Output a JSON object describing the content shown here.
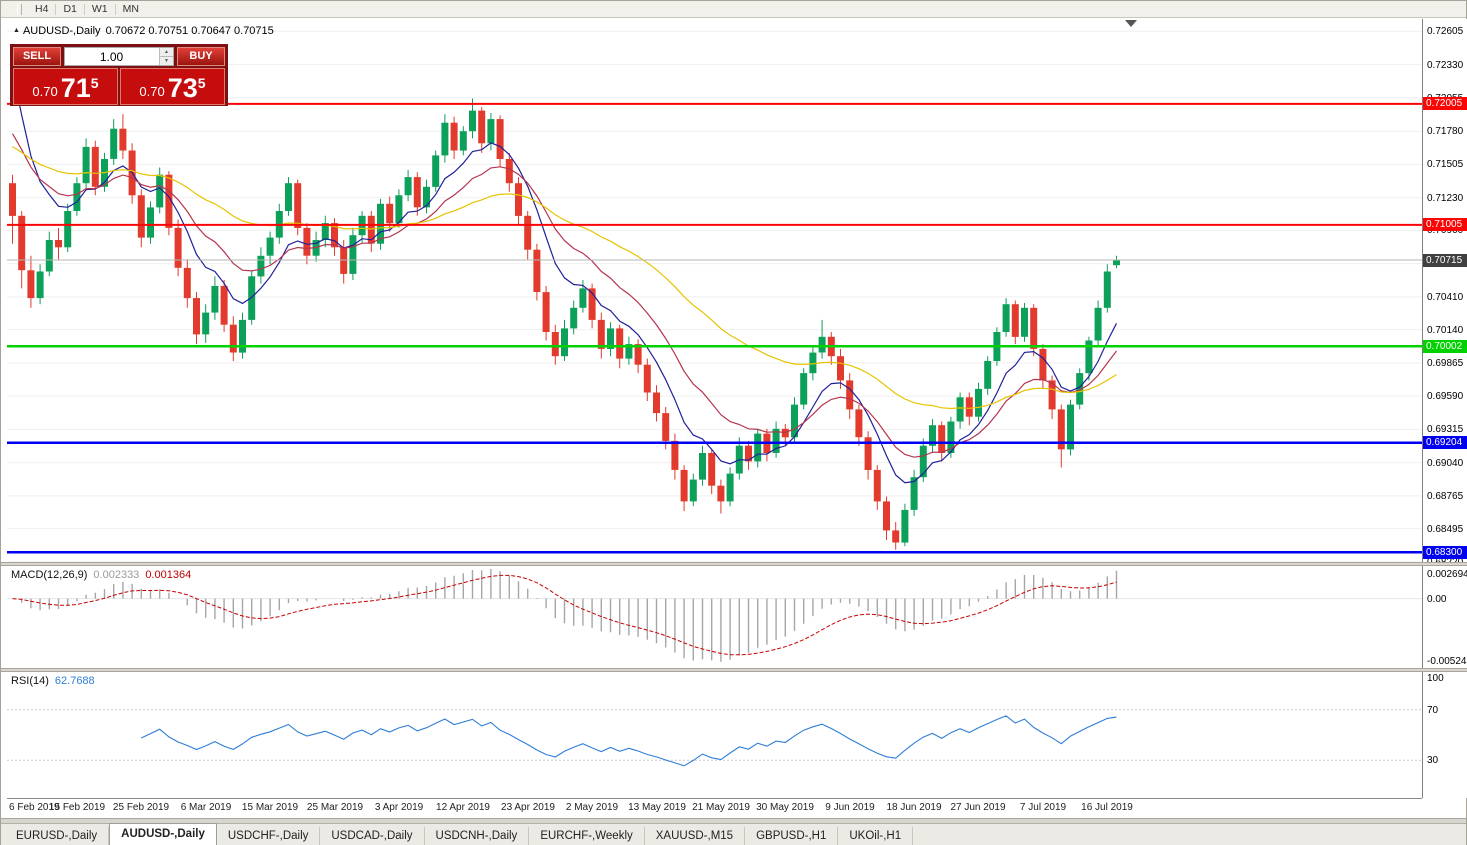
{
  "window": {
    "timeframes": [
      "H4",
      "D1",
      "W1",
      "MN"
    ]
  },
  "chart": {
    "title": "AUDUSD-,Daily",
    "ohlc": "0.70672 0.70751 0.70647 0.70715"
  },
  "icons": {
    "one_click_toggle": "▲",
    "spin_up": "▲",
    "spin_down": "▼"
  },
  "trade_panel": {
    "sell_label": "SELL",
    "buy_label": "BUY",
    "volume": "1.00",
    "sell_price": "0.70715",
    "buy_price": "0.70735",
    "sell": {
      "prefix": "0.70",
      "big": "71",
      "sup": "5"
    },
    "buy": {
      "prefix": "0.70",
      "big": "73",
      "sup": "5"
    }
  },
  "chart_data": {
    "type": "candlestick",
    "symbol": "AUDUSD",
    "timeframe": "Daily",
    "price_axis": {
      "max": 0.72707,
      "min": 0.68219,
      "labels": [
        "0.72605",
        "0.72330",
        "0.72055",
        "0.71780",
        "0.71505",
        "0.71230",
        "0.70960",
        "0.70685",
        "0.70410",
        "0.70140",
        "0.69865",
        "0.69590",
        "0.69315",
        "0.69040",
        "0.68765",
        "0.68495",
        "0.68220"
      ]
    },
    "x_axis": {
      "labels": [
        "6 Feb 2019",
        "15 Feb 2019",
        "25 Feb 2019",
        "6 Mar 2019",
        "15 Mar 2019",
        "25 Mar 2019",
        "3 Apr 2019",
        "12 Apr 2019",
        "23 Apr 2019",
        "2 May 2019",
        "13 May 2019",
        "21 May 2019",
        "30 May 2019",
        "9 Jun 2019",
        "18 Jun 2019",
        "27 Jun 2019",
        "7 Jul 2019",
        "16 Jul 2019"
      ],
      "indices": [
        0,
        7,
        14,
        21,
        28,
        35,
        42,
        49,
        56,
        63,
        70,
        77,
        84,
        91,
        98,
        105,
        112,
        119
      ]
    },
    "candles": [
      [
        0.7135,
        0.7142,
        0.7085,
        0.7108
      ],
      [
        0.7108,
        0.7112,
        0.7048,
        0.7063
      ],
      [
        0.7063,
        0.7075,
        0.7032,
        0.704
      ],
      [
        0.704,
        0.7068,
        0.7035,
        0.7062
      ],
      [
        0.7062,
        0.7095,
        0.7058,
        0.7088
      ],
      [
        0.7088,
        0.7098,
        0.7072,
        0.7082
      ],
      [
        0.7082,
        0.7118,
        0.7078,
        0.7112
      ],
      [
        0.7112,
        0.714,
        0.7108,
        0.7135
      ],
      [
        0.7135,
        0.7172,
        0.713,
        0.7165
      ],
      [
        0.7165,
        0.717,
        0.7125,
        0.7132
      ],
      [
        0.7132,
        0.716,
        0.7128,
        0.7155
      ],
      [
        0.7155,
        0.7188,
        0.715,
        0.718
      ],
      [
        0.718,
        0.7192,
        0.7155,
        0.7162
      ],
      [
        0.7162,
        0.7168,
        0.7118,
        0.7125
      ],
      [
        0.7125,
        0.713,
        0.7082,
        0.709
      ],
      [
        0.709,
        0.712,
        0.7085,
        0.7115
      ],
      [
        0.7115,
        0.7148,
        0.711,
        0.7142
      ],
      [
        0.7142,
        0.7145,
        0.7092,
        0.7098
      ],
      [
        0.7098,
        0.7105,
        0.7058,
        0.7065
      ],
      [
        0.7065,
        0.7072,
        0.7032,
        0.704
      ],
      [
        0.704,
        0.7045,
        0.7002,
        0.701
      ],
      [
        0.701,
        0.7035,
        0.7003,
        0.7028
      ],
      [
        0.7028,
        0.7058,
        0.7022,
        0.705
      ],
      [
        0.705,
        0.7055,
        0.7012,
        0.7018
      ],
      [
        0.7018,
        0.7025,
        0.6988,
        0.6995
      ],
      [
        0.6995,
        0.7028,
        0.699,
        0.7022
      ],
      [
        0.7022,
        0.7062,
        0.7018,
        0.7058
      ],
      [
        0.7058,
        0.7082,
        0.7052,
        0.7075
      ],
      [
        0.7075,
        0.7095,
        0.7068,
        0.709
      ],
      [
        0.709,
        0.7118,
        0.7085,
        0.7112
      ],
      [
        0.7112,
        0.714,
        0.7108,
        0.7135
      ],
      [
        0.7135,
        0.7138,
        0.7092,
        0.7098
      ],
      [
        0.7098,
        0.7102,
        0.7068,
        0.7075
      ],
      [
        0.7075,
        0.7095,
        0.707,
        0.7088
      ],
      [
        0.7088,
        0.7108,
        0.7082,
        0.7102
      ],
      [
        0.7102,
        0.7106,
        0.7075,
        0.7082
      ],
      [
        0.7082,
        0.7088,
        0.7052,
        0.706
      ],
      [
        0.706,
        0.7098,
        0.7055,
        0.7092
      ],
      [
        0.7092,
        0.7112,
        0.7086,
        0.7108
      ],
      [
        0.7108,
        0.7112,
        0.7078,
        0.7085
      ],
      [
        0.7085,
        0.7122,
        0.708,
        0.7118
      ],
      [
        0.7118,
        0.7124,
        0.7095,
        0.7102
      ],
      [
        0.7102,
        0.713,
        0.7098,
        0.7125
      ],
      [
        0.7125,
        0.7146,
        0.712,
        0.714
      ],
      [
        0.714,
        0.7144,
        0.7108,
        0.7115
      ],
      [
        0.7115,
        0.7138,
        0.711,
        0.7132
      ],
      [
        0.7132,
        0.7162,
        0.7128,
        0.7158
      ],
      [
        0.7158,
        0.7192,
        0.7152,
        0.7185
      ],
      [
        0.7185,
        0.719,
        0.7155,
        0.7162
      ],
      [
        0.7162,
        0.7182,
        0.7158,
        0.7178
      ],
      [
        0.7178,
        0.7205,
        0.7172,
        0.7195
      ],
      [
        0.7195,
        0.7198,
        0.716,
        0.7168
      ],
      [
        0.7168,
        0.7193,
        0.7162,
        0.7188
      ],
      [
        0.7188,
        0.7191,
        0.7148,
        0.7155
      ],
      [
        0.7155,
        0.716,
        0.7128,
        0.7135
      ],
      [
        0.7135,
        0.714,
        0.71,
        0.7108
      ],
      [
        0.7108,
        0.7112,
        0.7072,
        0.708
      ],
      [
        0.708,
        0.7085,
        0.7038,
        0.7045
      ],
      [
        0.7045,
        0.705,
        0.7005,
        0.7012
      ],
      [
        0.7012,
        0.7018,
        0.6985,
        0.6992
      ],
      [
        0.6992,
        0.7022,
        0.6988,
        0.7015
      ],
      [
        0.7015,
        0.7038,
        0.701,
        0.7032
      ],
      [
        0.7032,
        0.7055,
        0.7028,
        0.7048
      ],
      [
        0.7048,
        0.7052,
        0.7015,
        0.7022
      ],
      [
        0.7022,
        0.7028,
        0.699,
        0.6998
      ],
      [
        0.6998,
        0.702,
        0.6992,
        0.7015
      ],
      [
        0.7015,
        0.7018,
        0.6982,
        0.699
      ],
      [
        0.699,
        0.7008,
        0.6985,
        0.7002
      ],
      [
        0.7002,
        0.7006,
        0.6978,
        0.6985
      ],
      [
        0.6985,
        0.699,
        0.6955,
        0.6962
      ],
      [
        0.6962,
        0.6968,
        0.6938,
        0.6945
      ],
      [
        0.6945,
        0.695,
        0.6915,
        0.6922
      ],
      [
        0.6922,
        0.6928,
        0.689,
        0.6898
      ],
      [
        0.6898,
        0.6902,
        0.6864,
        0.6872
      ],
      [
        0.6872,
        0.6895,
        0.6868,
        0.689
      ],
      [
        0.689,
        0.6918,
        0.6885,
        0.6912
      ],
      [
        0.6912,
        0.6915,
        0.6878,
        0.6885
      ],
      [
        0.6885,
        0.689,
        0.6862,
        0.6872
      ],
      [
        0.6872,
        0.69,
        0.6868,
        0.6895
      ],
      [
        0.6895,
        0.6925,
        0.689,
        0.6918
      ],
      [
        0.6918,
        0.6922,
        0.6898,
        0.6905
      ],
      [
        0.6905,
        0.6932,
        0.69,
        0.6928
      ],
      [
        0.6928,
        0.6932,
        0.6905,
        0.6912
      ],
      [
        0.6912,
        0.6938,
        0.6908,
        0.6932
      ],
      [
        0.6932,
        0.6936,
        0.6918,
        0.6925
      ],
      [
        0.6925,
        0.6958,
        0.692,
        0.6952
      ],
      [
        0.6952,
        0.6982,
        0.6948,
        0.6978
      ],
      [
        0.6978,
        0.7,
        0.6972,
        0.6995
      ],
      [
        0.6995,
        0.7022,
        0.699,
        0.7008
      ],
      [
        0.7008,
        0.7012,
        0.6985,
        0.6992
      ],
      [
        0.6992,
        0.6998,
        0.6965,
        0.6972
      ],
      [
        0.6972,
        0.6978,
        0.694,
        0.6948
      ],
      [
        0.6948,
        0.6952,
        0.6918,
        0.6925
      ],
      [
        0.6925,
        0.693,
        0.689,
        0.6898
      ],
      [
        0.6898,
        0.6902,
        0.6865,
        0.6872
      ],
      [
        0.6872,
        0.6876,
        0.684,
        0.6848
      ],
      [
        0.6848,
        0.6855,
        0.6832,
        0.6838
      ],
      [
        0.6838,
        0.687,
        0.6835,
        0.6865
      ],
      [
        0.6865,
        0.6898,
        0.686,
        0.6892
      ],
      [
        0.6892,
        0.6924,
        0.6888,
        0.6918
      ],
      [
        0.6918,
        0.694,
        0.6912,
        0.6935
      ],
      [
        0.6935,
        0.6938,
        0.6905,
        0.6912
      ],
      [
        0.6912,
        0.6942,
        0.6908,
        0.6938
      ],
      [
        0.6938,
        0.6962,
        0.6932,
        0.6958
      ],
      [
        0.6958,
        0.6962,
        0.6935,
        0.6942
      ],
      [
        0.6942,
        0.697,
        0.6938,
        0.6965
      ],
      [
        0.6965,
        0.6992,
        0.696,
        0.6988
      ],
      [
        0.6988,
        0.7016,
        0.6984,
        0.7012
      ],
      [
        0.7012,
        0.704,
        0.7008,
        0.7035
      ],
      [
        0.7035,
        0.7038,
        0.7002,
        0.7008
      ],
      [
        0.7008,
        0.7036,
        0.7004,
        0.7032
      ],
      [
        0.7032,
        0.7035,
        0.6992,
        0.6998
      ],
      [
        0.6998,
        0.7002,
        0.6965,
        0.6972
      ],
      [
        0.6972,
        0.6976,
        0.694,
        0.6948
      ],
      [
        0.6948,
        0.6952,
        0.69,
        0.6915
      ],
      [
        0.6915,
        0.6956,
        0.691,
        0.6952
      ],
      [
        0.6952,
        0.6982,
        0.6948,
        0.6978
      ],
      [
        0.6978,
        0.7008,
        0.6972,
        0.7005
      ],
      [
        0.7005,
        0.7038,
        0.7,
        0.7032
      ],
      [
        0.7032,
        0.7068,
        0.7028,
        0.7062
      ],
      [
        0.70672,
        0.70751,
        0.70647,
        0.70715
      ]
    ],
    "colors": {
      "bull": "#0da05a",
      "bear": "#e23b2e",
      "grid": "#efefef",
      "macd_hist": "#a6a6a6",
      "macd_signal": "#c80000",
      "rsi_line": "#2f7ed8"
    },
    "moving_averages": [
      {
        "period": 8,
        "seed": 0.7262,
        "color": "#20209a"
      },
      {
        "period": 16,
        "seed": 0.7185,
        "color": "#b5344e"
      },
      {
        "period": 42,
        "seed": 0.7168,
        "color": "#e6c300"
      }
    ],
    "hlines": [
      {
        "value": 0.72005,
        "label": "0.72005",
        "color": "#fb0404",
        "width": 2
      },
      {
        "value": 0.71005,
        "label": "0.71005",
        "color": "#fb0404",
        "width": 2
      },
      {
        "value": 0.70002,
        "label": "0.70002",
        "color": "#00d200",
        "width": 2.5
      },
      {
        "value": 0.69204,
        "label": "0.69204",
        "color": "#0000f0",
        "width": 2.5
      },
      {
        "value": 0.683,
        "label": "0.68300",
        "color": "#0000f0",
        "width": 2.5
      }
    ],
    "current_price": {
      "value": 0.70715,
      "label": "0.70715",
      "tag_bg": "#404040",
      "line_color": "#b5b5b5"
    },
    "macd": {
      "name": "MACD(12,26,9)",
      "params": [
        12,
        26,
        9
      ],
      "main_value": "0.002333",
      "signal_value": "0.001364",
      "axis_labels": [
        "0.002694",
        "0.00",
        "-0.0052420"
      ]
    },
    "rsi": {
      "name": "RSI(14)",
      "period": 14,
      "value": "62.7688",
      "levels": [
        70,
        30
      ],
      "axis_labels": [
        "100",
        "70",
        "30"
      ]
    },
    "layout": {
      "candle_spacing": 9.2,
      "body_width": 7,
      "first_x": 5.5
    }
  },
  "tabs": [
    {
      "label": "EURUSD-,Daily",
      "active": false
    },
    {
      "label": "AUDUSD-,Daily",
      "active": true
    },
    {
      "label": "USDCHF-,Daily",
      "active": false
    },
    {
      "label": "USDCAD-,Daily",
      "active": false
    },
    {
      "label": "USDCNH-,Daily",
      "active": false
    },
    {
      "label": "EURCHF-,Weekly",
      "active": false
    },
    {
      "label": "XAUUSD-,M15",
      "active": false
    },
    {
      "label": "GBPUSD-,H1",
      "active": false
    },
    {
      "label": "UKOil-,H1",
      "active": false
    }
  ]
}
